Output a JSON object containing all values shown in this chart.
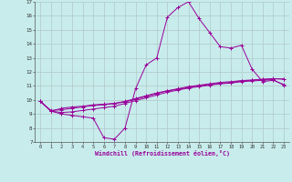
{
  "xlabel": "Windchill (Refroidissement éolien,°C)",
  "xlim": [
    -0.5,
    23.5
  ],
  "ylim": [
    7,
    17
  ],
  "xticks": [
    0,
    1,
    2,
    3,
    4,
    5,
    6,
    7,
    8,
    9,
    10,
    11,
    12,
    13,
    14,
    15,
    16,
    17,
    18,
    19,
    20,
    21,
    22,
    23
  ],
  "yticks": [
    7,
    8,
    9,
    10,
    11,
    12,
    13,
    14,
    15,
    16,
    17
  ],
  "bg_color": "#c8ecec",
  "line_color": "#990099",
  "grid_color": "#b0c8c8",
  "series": [
    [
      9.9,
      9.2,
      9.0,
      8.9,
      8.8,
      8.7,
      7.3,
      7.2,
      8.0,
      10.8,
      12.5,
      13.0,
      15.9,
      16.6,
      17.0,
      15.8,
      14.8,
      13.8,
      13.7,
      13.9,
      12.2,
      11.3,
      11.4,
      11.1
    ],
    [
      9.9,
      9.2,
      9.4,
      9.5,
      9.55,
      9.65,
      9.7,
      9.75,
      9.85,
      10.05,
      10.25,
      10.45,
      10.65,
      10.75,
      10.9,
      11.0,
      11.1,
      11.2,
      11.25,
      11.35,
      11.4,
      11.45,
      11.5,
      11.5
    ],
    [
      9.9,
      9.25,
      9.3,
      9.4,
      9.5,
      9.6,
      9.65,
      9.75,
      9.9,
      10.1,
      10.3,
      10.5,
      10.65,
      10.8,
      10.95,
      11.05,
      11.15,
      11.25,
      11.3,
      11.38,
      11.42,
      11.48,
      11.52,
      11.48
    ],
    [
      9.9,
      9.2,
      9.1,
      9.15,
      9.25,
      9.35,
      9.45,
      9.55,
      9.75,
      9.95,
      10.15,
      10.35,
      10.55,
      10.7,
      10.85,
      10.95,
      11.05,
      11.15,
      11.2,
      11.3,
      11.35,
      11.4,
      11.45,
      11.05
    ]
  ]
}
